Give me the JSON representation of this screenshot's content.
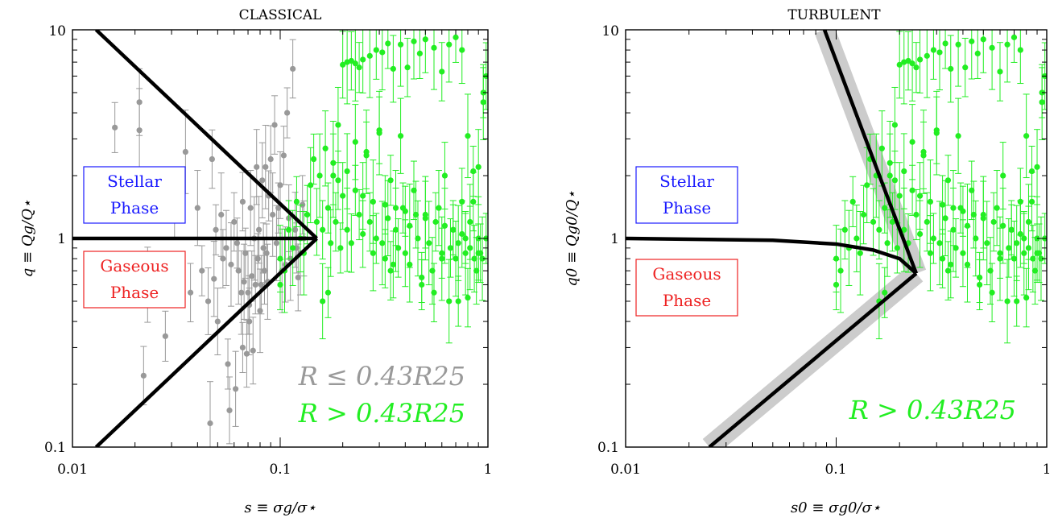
{
  "chart_data": [
    {
      "type": "scatter",
      "title": "CLASSICAL",
      "xlabel": "s ≡ σg/σ⋆",
      "ylabel": "q ≡ Qg/Q⋆",
      "xscale": "log",
      "yscale": "log",
      "xlim": [
        0.01,
        1
      ],
      "ylim": [
        0.1,
        10
      ],
      "xticks": [
        "0.01",
        "0.1",
        "1"
      ],
      "yticks": [
        "0.1",
        "1",
        "10"
      ],
      "phase_labels": {
        "stellar": [
          "Stellar",
          "Phase"
        ],
        "gaseous": [
          "Gaseous",
          "Phase"
        ]
      },
      "legend_text": [
        "R ≤ 0.43R25",
        "R > 0.43R25"
      ],
      "colors": {
        "inner": "#999999",
        "outer": "#22ee22",
        "stellar": "#1a1aff",
        "gaseous": "#ee2222",
        "curve": "#000000"
      },
      "curves": [
        {
          "name": "boundary-upper",
          "x": [
            0.013,
            0.15
          ],
          "y": [
            10,
            1
          ]
        },
        {
          "name": "boundary-flat",
          "x": [
            0.01,
            0.15
          ],
          "y": [
            1,
            1
          ]
        },
        {
          "name": "boundary-lower",
          "x": [
            0.013,
            0.15
          ],
          "y": [
            0.1,
            1
          ]
        }
      ],
      "series": [
        {
          "label": "R ≤ 0.43R25",
          "color": "#999999",
          "x": [
            0.016,
            0.021,
            0.021,
            0.022,
            0.023,
            0.028,
            0.031,
            0.035,
            0.037,
            0.04,
            0.042,
            0.045,
            0.046,
            0.047,
            0.048,
            0.049,
            0.05,
            0.052,
            0.053,
            0.055,
            0.056,
            0.057,
            0.058,
            0.06,
            0.061,
            0.062,
            0.063,
            0.065,
            0.066,
            0.067,
            0.068,
            0.069,
            0.07,
            0.071,
            0.072,
            0.073,
            0.074,
            0.075,
            0.076,
            0.077,
            0.078,
            0.079,
            0.08,
            0.081,
            0.082,
            0.083,
            0.084,
            0.085,
            0.086,
            0.087,
            0.088,
            0.09,
            0.092,
            0.094,
            0.096,
            0.098,
            0.1,
            0.102,
            0.104,
            0.106,
            0.108,
            0.11,
            0.112,
            0.115,
            0.118,
            0.12,
            0.122,
            0.125,
            0.128,
            0.13,
            0.066,
            0.071
          ],
          "y": [
            3.4,
            4.5,
            3.3,
            0.22,
            0.6,
            0.34,
            1.45,
            2.6,
            0.55,
            1.4,
            0.7,
            0.5,
            0.13,
            2.4,
            0.64,
            1.1,
            0.4,
            1.3,
            0.8,
            0.9,
            0.25,
            0.15,
            0.75,
            1.2,
            0.19,
            0.95,
            0.7,
            0.55,
            1.5,
            0.62,
            0.85,
            0.28,
            0.55,
            0.48,
            1.4,
            0.66,
            0.29,
            1.0,
            0.6,
            2.2,
            0.8,
            1.1,
            0.45,
            0.6,
            1.9,
            0.9,
            0.7,
            2.2,
            0.85,
            0.62,
            1.6,
            2.4,
            1.3,
            3.5,
            0.95,
            1.4,
            1.8,
            0.7,
            2.5,
            0.75,
            4.0,
            1.25,
            0.8,
            6.5,
            1.1,
            0.9,
            0.65,
            0.85,
            1.45,
            1.0,
            0.3,
            0.4
          ]
        },
        {
          "label": "R > 0.43R25",
          "color": "#22ee22",
          "x": [
            0.1,
            0.1,
            0.105,
            0.11,
            0.115,
            0.12,
            0.125,
            0.13,
            0.135,
            0.14,
            0.145,
            0.15,
            0.155,
            0.16,
            0.165,
            0.17,
            0.175,
            0.18,
            0.185,
            0.19,
            0.195,
            0.2,
            0.21,
            0.22,
            0.23,
            0.24,
            0.25,
            0.26,
            0.27,
            0.28,
            0.29,
            0.3,
            0.31,
            0.32,
            0.33,
            0.34,
            0.35,
            0.36,
            0.37,
            0.38,
            0.39,
            0.4,
            0.42,
            0.44,
            0.46,
            0.48,
            0.5,
            0.52,
            0.55,
            0.58,
            0.6,
            0.62,
            0.65,
            0.68,
            0.7,
            0.72,
            0.75,
            0.78,
            0.8,
            0.82,
            0.85,
            0.88,
            0.9,
            0.92,
            0.95,
            0.98,
            0.2,
            0.21,
            0.22,
            0.23,
            0.24,
            0.25,
            0.27,
            0.29,
            0.31,
            0.33,
            0.35,
            0.38,
            0.41,
            0.44,
            0.47,
            0.5,
            0.55,
            0.6,
            0.65,
            0.7,
            0.75,
            0.8,
            0.85,
            0.9,
            0.95,
            0.98,
            0.18,
            0.19,
            0.21,
            0.23,
            0.25,
            0.28,
            0.32,
            0.36,
            0.4,
            0.45,
            0.5,
            0.56,
            0.62,
            0.68,
            0.75,
            0.82,
            0.9,
            0.16,
            0.17,
            0.26,
            0.3,
            0.34,
            0.42,
            0.48,
            0.54,
            0.6,
            0.66,
            0.72,
            0.78,
            0.86,
            0.94
          ],
          "y": [
            0.6,
            0.8,
            0.7,
            1.1,
            0.9,
            1.5,
            1.0,
            0.85,
            1.3,
            1.8,
            2.4,
            1.2,
            2.0,
            1.1,
            2.7,
            1.4,
            0.95,
            2.3,
            1.2,
            3.5,
            0.9,
            1.6,
            1.1,
            0.95,
            2.9,
            1.3,
            1.05,
            2.6,
            1.2,
            0.85,
            1.0,
            3.3,
            0.95,
            0.8,
            1.25,
            1.9,
            0.75,
            1.1,
            0.9,
            3.1,
            1.4,
            0.85,
            1.15,
            1.7,
            1.0,
            0.6,
            1.3,
            0.95,
            0.55,
            1.4,
            0.85,
            2.0,
            0.5,
            1.1,
            0.8,
            0.5,
            1.5,
            0.85,
            0.52,
            1.2,
            2.1,
            0.7,
            1.0,
            0.85,
            4.5,
            1.0,
            6.8,
            7.0,
            7.1,
            6.9,
            6.6,
            7.2,
            7.5,
            8.0,
            7.8,
            8.6,
            6.5,
            8.5,
            6.6,
            8.8,
            7.7,
            9.0,
            8.2,
            6.3,
            8.5,
            9.2,
            8.0,
            3.1,
            1.5,
            2.2,
            5.0,
            6.0,
            2.0,
            1.9,
            2.1,
            1.7,
            1.6,
            1.5,
            1.45,
            1.4,
            1.35,
            1.3,
            1.25,
            1.2,
            1.15,
            1.1,
            1.05,
            0.9,
            0.85,
            0.5,
            0.55,
            2.5,
            3.2,
            0.7,
            0.75,
            0.65,
            0.7,
            0.8,
            0.9,
            0.95,
            1.0,
            0.8,
            0.8
          ]
        }
      ]
    },
    {
      "type": "scatter",
      "title": "TURBULENT",
      "xlabel": "s0 ≡ σg0/σ⋆",
      "ylabel": "q0 ≡ Qg0/Q⋆",
      "xscale": "log",
      "yscale": "log",
      "xlim": [
        0.01,
        1
      ],
      "ylim": [
        0.1,
        10
      ],
      "xticks": [
        "0.01",
        "0.1",
        "1"
      ],
      "yticks": [
        "0.1",
        "1",
        "10"
      ],
      "phase_labels": {
        "stellar": [
          "Stellar",
          "Phase"
        ],
        "gaseous": [
          "Gaseous",
          "Phase"
        ]
      },
      "legend_text": [
        "R > 0.43R25"
      ],
      "colors": {
        "outer": "#22ee22",
        "stellar": "#1a1aff",
        "gaseous": "#ee2222",
        "curve": "#000000",
        "band": "#cccccc"
      },
      "curves": [
        {
          "name": "boundary-upper",
          "x": [
            0.088,
            0.24
          ],
          "y": [
            10,
            0.68
          ]
        },
        {
          "name": "boundary-flat",
          "x": [
            0.01,
            0.05,
            0.1,
            0.15,
            0.2,
            0.24
          ],
          "y": [
            1.0,
            0.98,
            0.94,
            0.88,
            0.8,
            0.68
          ]
        },
        {
          "name": "boundary-lower",
          "x": [
            0.025,
            0.24
          ],
          "y": [
            0.1,
            0.68
          ]
        }
      ],
      "series": [
        {
          "label": "R > 0.43R25",
          "color": "#22ee22",
          "x": [
            0.1,
            0.1,
            0.105,
            0.11,
            0.115,
            0.12,
            0.125,
            0.13,
            0.135,
            0.14,
            0.145,
            0.15,
            0.155,
            0.16,
            0.165,
            0.17,
            0.175,
            0.18,
            0.185,
            0.19,
            0.195,
            0.2,
            0.21,
            0.22,
            0.23,
            0.24,
            0.25,
            0.26,
            0.27,
            0.28,
            0.29,
            0.3,
            0.31,
            0.32,
            0.33,
            0.34,
            0.35,
            0.36,
            0.37,
            0.38,
            0.39,
            0.4,
            0.42,
            0.44,
            0.46,
            0.48,
            0.5,
            0.52,
            0.55,
            0.58,
            0.6,
            0.62,
            0.65,
            0.68,
            0.7,
            0.72,
            0.75,
            0.78,
            0.8,
            0.82,
            0.85,
            0.88,
            0.9,
            0.92,
            0.95,
            0.98,
            0.2,
            0.21,
            0.22,
            0.23,
            0.24,
            0.25,
            0.27,
            0.29,
            0.31,
            0.33,
            0.35,
            0.38,
            0.41,
            0.44,
            0.47,
            0.5,
            0.55,
            0.6,
            0.65,
            0.7,
            0.75,
            0.8,
            0.85,
            0.9,
            0.95,
            0.98,
            0.18,
            0.19,
            0.21,
            0.23,
            0.25,
            0.28,
            0.32,
            0.36,
            0.4,
            0.45,
            0.5,
            0.56,
            0.62,
            0.68,
            0.75,
            0.82,
            0.9,
            0.16,
            0.17,
            0.26,
            0.3,
            0.34,
            0.42,
            0.48,
            0.54,
            0.6,
            0.66,
            0.72,
            0.78,
            0.86,
            0.94
          ],
          "y": [
            0.6,
            0.8,
            0.7,
            1.1,
            0.9,
            1.5,
            1.0,
            0.85,
            1.3,
            1.8,
            2.4,
            1.2,
            2.0,
            1.1,
            2.7,
            1.4,
            0.95,
            2.3,
            1.2,
            3.5,
            0.9,
            1.6,
            1.1,
            0.95,
            2.9,
            1.3,
            1.05,
            2.6,
            1.2,
            0.85,
            1.0,
            3.3,
            0.95,
            0.8,
            1.25,
            1.9,
            0.75,
            1.1,
            0.9,
            3.1,
            1.4,
            0.85,
            1.15,
            1.7,
            1.0,
            0.6,
            1.3,
            0.95,
            0.55,
            1.4,
            0.85,
            2.0,
            0.5,
            1.1,
            0.8,
            0.5,
            1.5,
            0.85,
            0.52,
            1.2,
            2.1,
            0.7,
            1.0,
            0.85,
            4.5,
            1.0,
            6.8,
            7.0,
            7.1,
            6.9,
            6.6,
            7.2,
            7.5,
            8.0,
            7.8,
            8.6,
            6.5,
            8.5,
            6.6,
            8.8,
            7.7,
            9.0,
            8.2,
            6.3,
            8.5,
            9.2,
            8.0,
            3.1,
            1.5,
            2.2,
            5.0,
            6.0,
            2.0,
            1.9,
            2.1,
            1.7,
            1.6,
            1.5,
            1.45,
            1.4,
            1.35,
            1.3,
            1.25,
            1.2,
            1.15,
            1.1,
            1.05,
            0.9,
            0.85,
            0.5,
            0.55,
            2.5,
            3.2,
            0.7,
            0.75,
            0.65,
            0.7,
            0.8,
            0.9,
            0.95,
            1.0,
            0.8,
            0.8
          ]
        }
      ]
    }
  ]
}
